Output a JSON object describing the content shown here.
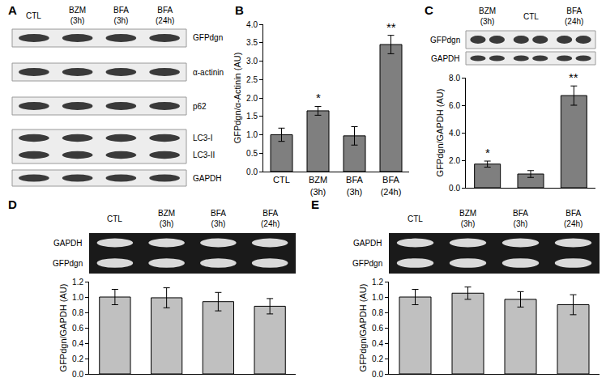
{
  "chart_data": [
    {
      "type": "bar",
      "title": "B",
      "categories": [
        "CTL",
        "BZM\n(3h)",
        "BFA\n(3h)",
        "BFA\n(24h)"
      ],
      "values": [
        1.0,
        1.65,
        0.97,
        3.45
      ],
      "errors": [
        0.18,
        0.12,
        0.25,
        0.25
      ],
      "y_label": "GFPdgn/α-Actinin (AU)",
      "ylim": [
        0,
        4
      ],
      "yticks": [
        {
          "value": 0,
          "label": "0.0"
        },
        {
          "value": 0.5,
          "label": "0.5"
        },
        {
          "value": 1,
          "label": "1.0"
        },
        {
          "value": 1.5,
          "label": "1.5"
        },
        {
          "value": 2,
          "label": "2.0"
        },
        {
          "value": 2.5,
          "label": "2.5"
        },
        {
          "value": 3,
          "label": "3.0"
        },
        {
          "value": 3.5,
          "label": "3.5"
        },
        {
          "value": 4,
          "label": "4.0"
        }
      ],
      "color": "#7f7f7f",
      "grid": false,
      "annotations": [
        {
          "category": "BZM\n(3h)",
          "text": "*"
        },
        {
          "category": "BFA\n(24h)",
          "text": "**"
        }
      ]
    },
    {
      "type": "bar",
      "title": "C",
      "categories": [
        "BZM\n(3h)",
        "CTL",
        "BFA\n(24h)"
      ],
      "values": [
        1.72,
        1.0,
        6.7
      ],
      "errors": [
        0.22,
        0.25,
        0.7
      ],
      "y_label": "GFPdgn/GAPDH (AU)",
      "ylim": [
        0,
        8
      ],
      "yticks": [
        {
          "value": 0,
          "label": "0.0"
        },
        {
          "value": 2,
          "label": "2.0"
        },
        {
          "value": 4,
          "label": "4.0"
        },
        {
          "value": 6,
          "label": "6.0"
        },
        {
          "value": 8,
          "label": "8.0"
        }
      ],
      "color": "#7f7f7f",
      "grid": false,
      "tick_labels": "y",
      "annotations": [
        {
          "category": "BZM\n(3h)",
          "text": "*"
        },
        {
          "category": "BFA\n(24h)",
          "text": "**"
        }
      ]
    },
    {
      "type": "bar",
      "title": "D",
      "categories": [
        "CTL",
        "BZM\n(3h)",
        "BFA\n(3h)",
        "BFA\n(24h)"
      ],
      "values": [
        1.0,
        0.99,
        0.94,
        0.88
      ],
      "errors": [
        0.1,
        0.13,
        0.12,
        0.1
      ],
      "y_label": "GFPdgn/GAPDH (AU)",
      "ylim": [
        0,
        1.2
      ],
      "yticks": [
        {
          "value": 0,
          "label": "0.0"
        },
        {
          "value": 0.2,
          "label": "0.2"
        },
        {
          "value": 0.4,
          "label": "0.4"
        },
        {
          "value": 0.6,
          "label": "0.6"
        },
        {
          "value": 0.8,
          "label": "0.8"
        },
        {
          "value": 1,
          "label": "1.0"
        },
        {
          "value": 1.2,
          "label": "1.2"
        }
      ],
      "color": "#c0c0c0",
      "grid": false,
      "tick_labels": "y"
    },
    {
      "type": "bar",
      "title": "E",
      "categories": [
        "CTL",
        "BZM\n(3h)",
        "BFA\n(3h)",
        "BFA\n(24h)"
      ],
      "values": [
        1.0,
        1.05,
        0.97,
        0.9
      ],
      "errors": [
        0.1,
        0.08,
        0.1,
        0.13
      ],
      "y_label": "GFPdgn/GAPDH (AU)",
      "ylim": [
        0,
        1.2
      ],
      "yticks": [
        {
          "value": 0,
          "label": "0.0"
        },
        {
          "value": 0.2,
          "label": "0.2"
        },
        {
          "value": 0.4,
          "label": "0.4"
        },
        {
          "value": 0.6,
          "label": "0.6"
        },
        {
          "value": 0.8,
          "label": "0.8"
        },
        {
          "value": 1,
          "label": "1.0"
        },
        {
          "value": 1.2,
          "label": "1.2"
        }
      ],
      "color": "#c0c0c0",
      "grid": false,
      "tick_labels": "y"
    }
  ],
  "blots": [
    {
      "panel": "A",
      "lanes": [
        "CTL",
        "BZM\n(3h)",
        "BFA\n(3h)",
        "BFA\n(24h)"
      ],
      "rows": [
        [
          "GFPdgn"
        ],
        [
          "α-actinin"
        ],
        [
          "p62"
        ],
        [
          "LC3-I",
          "LC3-II"
        ],
        [
          "GAPDH"
        ]
      ]
    },
    {
      "panel": "C",
      "rows": [
        [
          "GFPdgn"
        ],
        [
          "GAPDH"
        ]
      ]
    },
    {
      "panel": "D",
      "rows": [
        [
          "GAPDH"
        ],
        [
          "GFPdgn"
        ]
      ]
    },
    {
      "panel": "E",
      "rows": [
        [
          "GAPDH"
        ],
        [
          "GFPdgn"
        ]
      ]
    }
  ]
}
